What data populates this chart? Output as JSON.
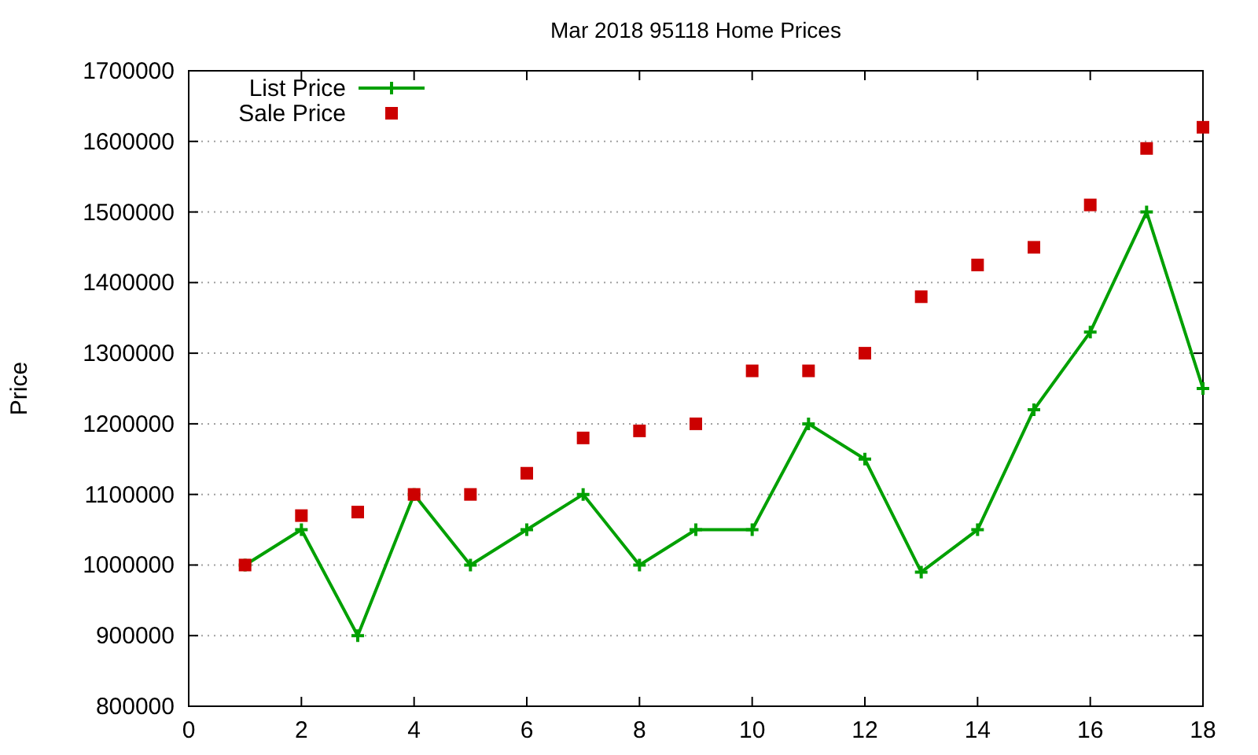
{
  "chart_data": {
    "type": "line",
    "title": "Mar 2018 95118 Home Prices",
    "ylabel": "Price",
    "x": [
      1,
      2,
      3,
      4,
      5,
      6,
      7,
      8,
      9,
      10,
      11,
      12,
      13,
      14,
      15,
      16,
      17,
      18
    ],
    "series": [
      {
        "name": "List Price",
        "color": "#00a000",
        "marker": "cross",
        "values": [
          1000000,
          1050000,
          900000,
          1100000,
          1000000,
          1050000,
          1100000,
          1000000,
          1050000,
          1050000,
          1200000,
          1150000,
          990000,
          1050000,
          1220000,
          1330000,
          1500000,
          1250000
        ]
      },
      {
        "name": "Sale Price",
        "type": "scatter",
        "color": "#cc0000",
        "marker": "square",
        "values": [
          1000000,
          1070000,
          1075000,
          1100000,
          1100000,
          1130000,
          1180000,
          1190000,
          1200000,
          1275000,
          1275000,
          1300000,
          1380000,
          1425000,
          1450000,
          1510000,
          1590000,
          1620000
        ]
      }
    ],
    "xlim": [
      0,
      18
    ],
    "xticks": [
      0,
      2,
      4,
      6,
      8,
      10,
      12,
      14,
      16,
      18
    ],
    "ylim": [
      800000,
      1700000
    ],
    "yticks": [
      800000,
      900000,
      1000000,
      1100000,
      1200000,
      1300000,
      1400000,
      1500000,
      1600000,
      1700000
    ],
    "grid": "y",
    "legend": "top left"
  }
}
